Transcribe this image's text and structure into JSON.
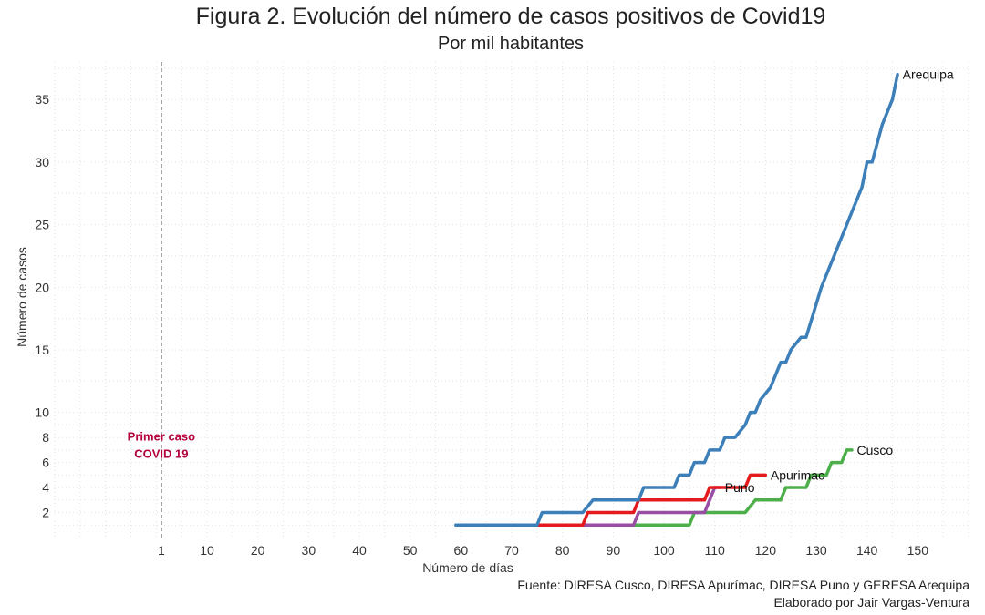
{
  "title": "Figura 2. Evolución del número de casos positivos de Covid19",
  "subtitle": "Por mil habitantes",
  "caption": {
    "source": "Fuente: DIRESA Cusco, DIRESA Apurímac, DIRESA Puno y GERESA Arequipa",
    "author": "Elaborado por Jair Vargas-Ventura"
  },
  "chart_data": {
    "type": "line",
    "xlabel": "Número de días",
    "ylabel": "Número de casos",
    "xlim": [
      -20,
      160
    ],
    "ylim": [
      0,
      38
    ],
    "x_ticks": [
      1,
      10,
      20,
      30,
      40,
      50,
      60,
      70,
      80,
      90,
      100,
      110,
      120,
      130,
      140,
      150
    ],
    "y_ticks": [
      2,
      4,
      6,
      8,
      10,
      15,
      20,
      25,
      30,
      35
    ],
    "grid": true,
    "annotation": {
      "x": 1,
      "y": 7.6,
      "lines": [
        "Primer caso",
        "COVID 19"
      ],
      "color": "#b3003b"
    },
    "series": [
      {
        "name": "Arequipa",
        "color": "#3d7fb9",
        "points": [
          [
            59,
            1
          ],
          [
            75,
            1
          ],
          [
            76,
            2
          ],
          [
            84,
            2
          ],
          [
            86,
            3
          ],
          [
            95,
            3
          ],
          [
            96,
            4
          ],
          [
            102,
            4
          ],
          [
            103,
            5
          ],
          [
            105,
            5
          ],
          [
            106,
            6
          ],
          [
            108,
            6
          ],
          [
            109,
            7
          ],
          [
            111,
            7
          ],
          [
            112,
            8
          ],
          [
            114,
            8
          ],
          [
            116,
            9
          ],
          [
            117,
            10
          ],
          [
            118,
            10
          ],
          [
            119,
            11
          ],
          [
            121,
            12
          ],
          [
            123,
            14
          ],
          [
            124,
            14
          ],
          [
            125,
            15
          ],
          [
            127,
            16
          ],
          [
            128,
            16
          ],
          [
            131,
            20
          ],
          [
            133,
            22
          ],
          [
            135,
            24
          ],
          [
            137,
            26
          ],
          [
            139,
            28
          ],
          [
            140,
            30
          ],
          [
            141,
            30
          ],
          [
            143,
            33
          ],
          [
            145,
            35
          ],
          [
            146,
            37
          ]
        ]
      },
      {
        "name": "Cusco",
        "color": "#4daf4a",
        "points": [
          [
            64,
            1
          ],
          [
            105,
            1
          ],
          [
            106,
            2
          ],
          [
            116,
            2
          ],
          [
            118,
            3
          ],
          [
            123,
            3
          ],
          [
            124,
            4
          ],
          [
            128,
            4
          ],
          [
            129,
            5
          ],
          [
            132,
            5
          ],
          [
            133,
            6
          ],
          [
            135,
            6
          ],
          [
            136,
            7
          ],
          [
            137,
            7
          ]
        ]
      },
      {
        "name": "Apurimac",
        "color": "#e41a1c",
        "points": [
          [
            64,
            1
          ],
          [
            84,
            1
          ],
          [
            85,
            2
          ],
          [
            94,
            2
          ],
          [
            95,
            3
          ],
          [
            102,
            3
          ],
          [
            103,
            3
          ],
          [
            108,
            3
          ],
          [
            109,
            4
          ],
          [
            112,
            4
          ],
          [
            113,
            4
          ],
          [
            116,
            4
          ],
          [
            117,
            5
          ],
          [
            120,
            5
          ]
        ]
      },
      {
        "name": "Puno",
        "color": "#984ea3",
        "points": [
          [
            64,
            1
          ],
          [
            94,
            1
          ],
          [
            95,
            2
          ],
          [
            103,
            2
          ],
          [
            104,
            2
          ],
          [
            108,
            2
          ],
          [
            109,
            3
          ],
          [
            110,
            4
          ],
          [
            111,
            4
          ]
        ]
      }
    ],
    "label_positions": {
      "Arequipa": [
        147,
        37
      ],
      "Cusco": [
        138,
        7
      ],
      "Apurimac": [
        121,
        5
      ],
      "Puno": [
        112,
        4
      ]
    }
  }
}
